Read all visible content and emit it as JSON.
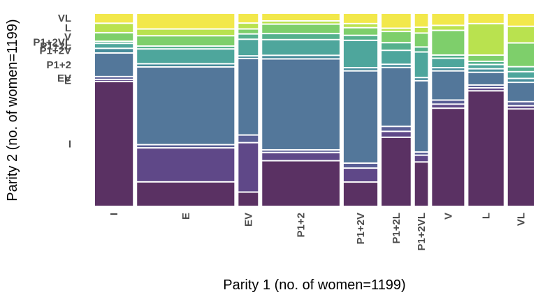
{
  "chart_data": {
    "type": "mosaic",
    "xlabel": "Parity 1 (no. of women=1199)",
    "ylabel": "Parity 2 (no. of women=1199)",
    "x_categories": [
      "I",
      "E",
      "EV",
      "P1+2",
      "P1+2V",
      "P1+2L",
      "P1+2VL",
      "V",
      "L",
      "VL"
    ],
    "y_categories": [
      "I",
      "E",
      "EV",
      "P1+2",
      "P1+2V",
      "P1+2L",
      "P1+2VL",
      "V",
      "L",
      "VL"
    ],
    "y_tick_labels": [
      "I",
      "E",
      "EV",
      "P1+2",
      "P1+2V",
      "P1+2L",
      "P1+2VL",
      "V",
      "L",
      "VL"
    ],
    "x_widths": [
      0.099,
      0.254,
      0.051,
      0.202,
      0.088,
      0.076,
      0.034,
      0.084,
      0.092,
      0.068
    ],
    "proportions": [
      [
        0.689,
        0.004,
        0.008,
        0.124,
        0.018,
        0.02,
        0.004,
        0.04,
        0.045,
        0.048
      ],
      [
        0.129,
        0.182,
        0.01,
        0.426,
        0.01,
        0.075,
        0.008,
        0.05,
        0.03,
        0.08
      ],
      [
        0.072,
        0.268,
        0.035,
        0.419,
        0.007,
        0.085,
        0.022,
        0.02,
        0.025,
        0.047
      ],
      [
        0.247,
        0.038,
        0.007,
        0.5,
        0.012,
        0.08,
        0.026,
        0.045,
        0.01,
        0.035
      ],
      [
        0.128,
        0.07,
        0.02,
        0.507,
        0.01,
        0.145,
        0.02,
        0.035,
        0.015,
        0.05
      ],
      [
        0.378,
        0.025,
        0.02,
        0.321,
        0.01,
        0.07,
        0.035,
        0.055,
        0.01,
        0.076
      ],
      [
        0.24,
        0.03,
        0.01,
        0.39,
        0.01,
        0.135,
        0.02,
        0.07,
        0.025,
        0.07
      ],
      [
        0.54,
        0.015,
        0.015,
        0.155,
        0.01,
        0.045,
        0.01,
        0.13,
        0.02,
        0.06
      ],
      [
        0.637,
        0.009,
        0.008,
        0.063,
        0.012,
        0.016,
        0.01,
        0.027,
        0.168,
        0.05
      ],
      [
        0.536,
        0.01,
        0.015,
        0.1,
        0.014,
        0.03,
        0.02,
        0.125,
        0.085,
        0.065
      ]
    ],
    "colors": [
      "#5a3163",
      "#5f4888",
      "#5a5f96",
      "#53779a",
      "#478c9b",
      "#4ea69c",
      "#55b18d",
      "#7ecf6b",
      "#b9e24f",
      "#f2e84b"
    ]
  }
}
